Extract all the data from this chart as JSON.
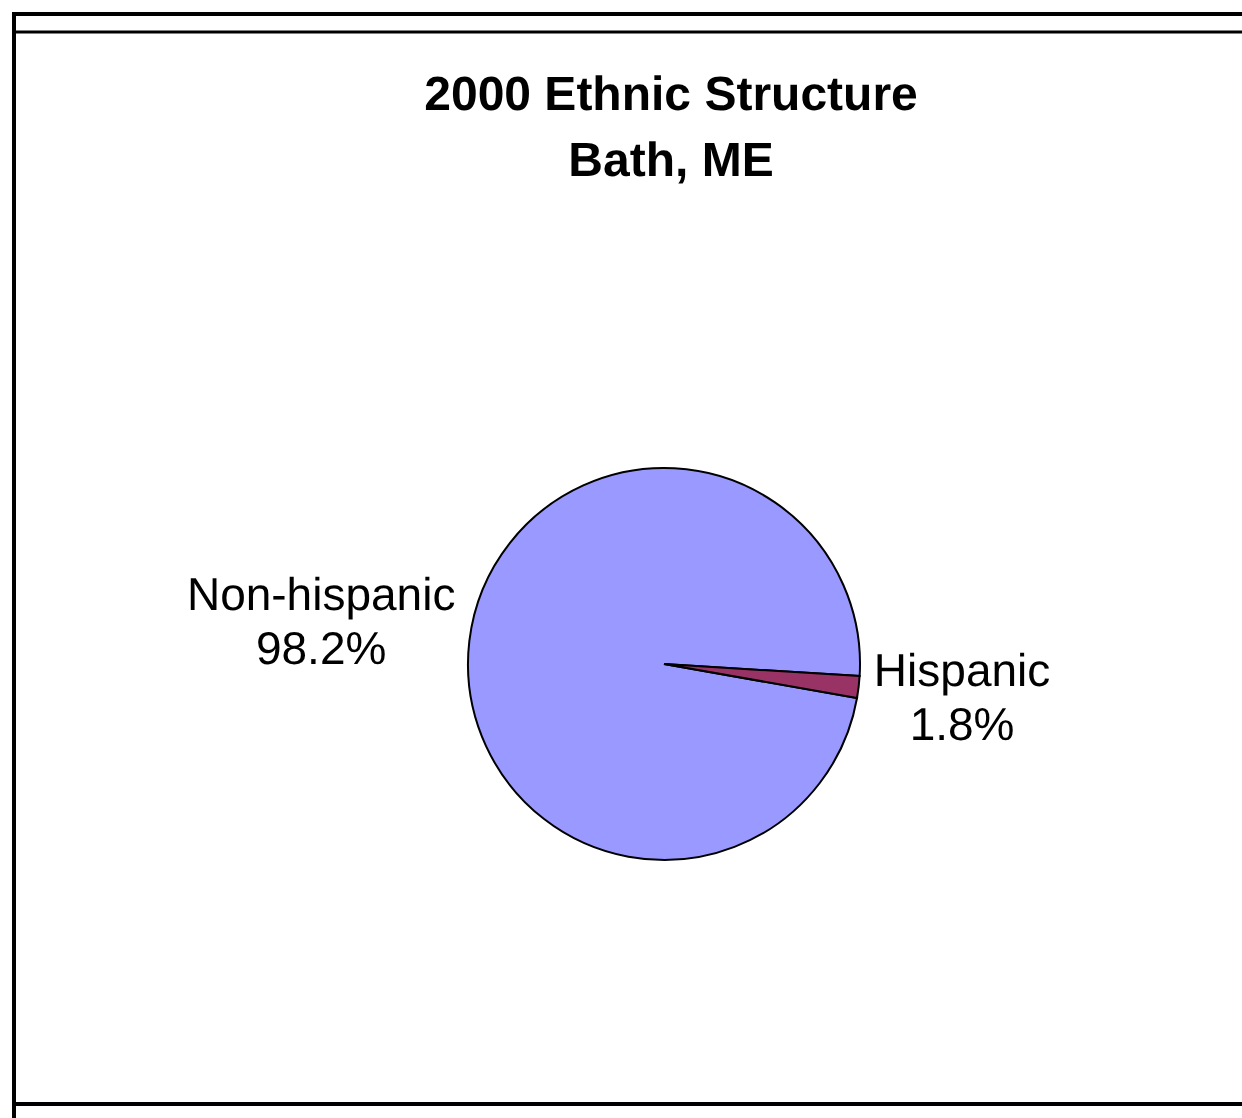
{
  "chart_data": {
    "type": "pie",
    "title": "2000 Ethnic Structure",
    "subtitle": "Bath, ME",
    "categories": [
      "Non-hispanic",
      "Hispanic"
    ],
    "values": [
      98.2,
      1.8
    ],
    "colors": [
      "#9999ff",
      "#993366"
    ],
    "value_labels": [
      "98.2%",
      "1.8%"
    ]
  }
}
